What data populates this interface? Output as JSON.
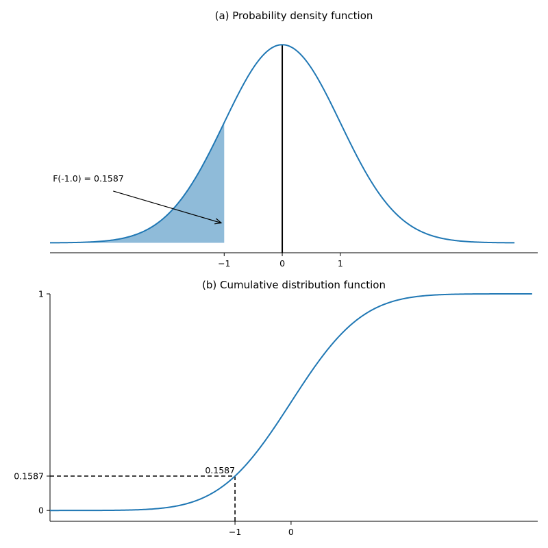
{
  "chart_data": [
    {
      "type": "area",
      "title": "(a) Probability density function",
      "xlabel": "",
      "ylabel": "",
      "xlim": [
        -4.0,
        4.4
      ],
      "ylim": [
        -0.02,
        0.42
      ],
      "x_ticks": [
        -1,
        0,
        1
      ],
      "x_tick_labels": [
        "−1",
        "0",
        "1"
      ],
      "grid": false,
      "series": [
        {
          "function": "normal_pdf",
          "mean": 0,
          "std": 1,
          "x_range": [
            -4,
            4
          ],
          "color": "#1f77b4"
        }
      ],
      "shaded_region": {
        "x_from": -4,
        "x_to": -1,
        "color": "#1f77b4",
        "opacity": 0.5
      },
      "vertical_line": {
        "x": 0,
        "color": "#000000"
      },
      "annotation": {
        "text": "F(-1.0) = 0.1587",
        "text_x": -3.95,
        "text_y": 0.118,
        "arrow_to_x": -1.05,
        "arrow_to_y": 0.04
      }
    },
    {
      "type": "line",
      "title": "(b) Cumulative distribution function",
      "xlabel": "",
      "ylabel": "",
      "xlim": [
        -4.3,
        4.4
      ],
      "ylim": [
        -0.05,
        1.0
      ],
      "x_ticks": [
        -1,
        0
      ],
      "x_tick_labels": [
        "−1",
        "0"
      ],
      "y_ticks": [
        0,
        0.1587,
        1
      ],
      "y_tick_labels": [
        "0",
        "0.1587",
        "1"
      ],
      "grid": false,
      "series": [
        {
          "function": "normal_cdf",
          "mean": 0,
          "std": 1,
          "x_range": [
            -4.3,
            4.3
          ],
          "color": "#1f77b4"
        }
      ],
      "reference_point": {
        "x": -1,
        "y": 0.1587,
        "label": "0.1587",
        "style": "dashed"
      }
    }
  ]
}
